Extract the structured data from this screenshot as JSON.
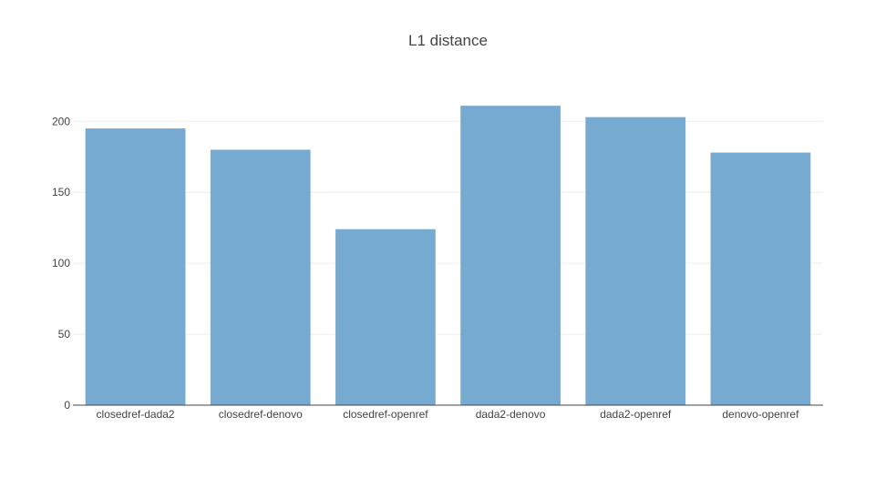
{
  "chart_data": {
    "type": "bar",
    "title": "L1 distance",
    "xlabel": "",
    "ylabel": "",
    "categories": [
      "closedref-dada2",
      "closedref-denovo",
      "closedref-openref",
      "dada2-denovo",
      "dada2-openref",
      "denovo-openref"
    ],
    "values": [
      195,
      180,
      124,
      211,
      203,
      178
    ],
    "ylim": [
      0,
      222
    ],
    "yticks": [
      0,
      50,
      100,
      150,
      200
    ],
    "grid": true,
    "legend": "none",
    "bar_color": "#77aad1",
    "axis_color": "#444444",
    "grid_color": "#eeeeee",
    "text_color": "#444444"
  }
}
